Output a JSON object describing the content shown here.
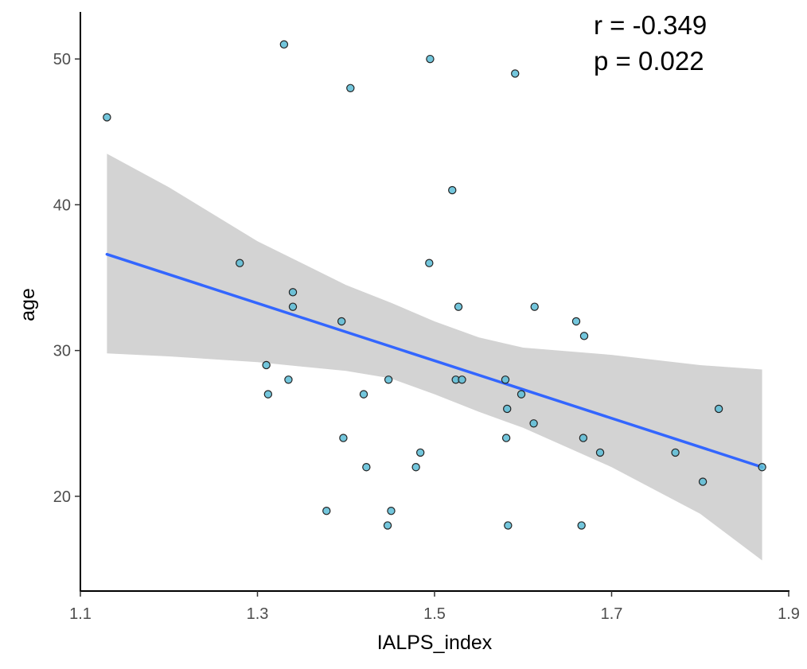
{
  "chart_data": {
    "type": "scatter",
    "title": "",
    "xlabel": "IALPS_index",
    "ylabel": "age",
    "xlim": [
      1.1,
      1.9
    ],
    "ylim": [
      13.5,
      53.5
    ],
    "xticks": [
      1.1,
      1.3,
      1.5,
      1.7,
      1.9
    ],
    "xtick_labels": [
      "1.1",
      "1.3",
      "1.5",
      "1.7",
      "1.9"
    ],
    "yticks": [
      20,
      30,
      40,
      50
    ],
    "ytick_labels": [
      "20",
      "30",
      "40",
      "50"
    ],
    "grid": false,
    "legend": "none",
    "annotations": [
      "r = -0.349",
      "p = 0.022"
    ],
    "colors": {
      "point_fill": "#5bbcd6",
      "point_edge": "#222222",
      "fit_line": "#3366ff",
      "ci_band": "#d3d3d3",
      "axis": "#000000"
    },
    "points": [
      {
        "x": 1.13,
        "y": 46
      },
      {
        "x": 1.28,
        "y": 36
      },
      {
        "x": 1.31,
        "y": 29
      },
      {
        "x": 1.312,
        "y": 27
      },
      {
        "x": 1.33,
        "y": 51
      },
      {
        "x": 1.335,
        "y": 28
      },
      {
        "x": 1.34,
        "y": 34
      },
      {
        "x": 1.34,
        "y": 33
      },
      {
        "x": 1.378,
        "y": 19
      },
      {
        "x": 1.395,
        "y": 32
      },
      {
        "x": 1.397,
        "y": 24
      },
      {
        "x": 1.405,
        "y": 48
      },
      {
        "x": 1.42,
        "y": 27
      },
      {
        "x": 1.423,
        "y": 22
      },
      {
        "x": 1.447,
        "y": 18
      },
      {
        "x": 1.448,
        "y": 28
      },
      {
        "x": 1.451,
        "y": 19
      },
      {
        "x": 1.479,
        "y": 22
      },
      {
        "x": 1.484,
        "y": 23
      },
      {
        "x": 1.494,
        "y": 36
      },
      {
        "x": 1.495,
        "y": 50
      },
      {
        "x": 1.52,
        "y": 41
      },
      {
        "x": 1.524,
        "y": 28
      },
      {
        "x": 1.527,
        "y": 33
      },
      {
        "x": 1.531,
        "y": 28
      },
      {
        "x": 1.58,
        "y": 28
      },
      {
        "x": 1.581,
        "y": 24
      },
      {
        "x": 1.582,
        "y": 26
      },
      {
        "x": 1.583,
        "y": 18
      },
      {
        "x": 1.591,
        "y": 49
      },
      {
        "x": 1.598,
        "y": 27
      },
      {
        "x": 1.612,
        "y": 25
      },
      {
        "x": 1.613,
        "y": 33
      },
      {
        "x": 1.66,
        "y": 32
      },
      {
        "x": 1.666,
        "y": 18
      },
      {
        "x": 1.668,
        "y": 24
      },
      {
        "x": 1.669,
        "y": 31
      },
      {
        "x": 1.687,
        "y": 23
      },
      {
        "x": 1.772,
        "y": 23
      },
      {
        "x": 1.803,
        "y": 21
      },
      {
        "x": 1.821,
        "y": 26
      },
      {
        "x": 1.87,
        "y": 22
      }
    ],
    "fit": {
      "method": "lm",
      "x": [
        1.13,
        1.87
      ],
      "y": [
        36.6,
        22.0
      ],
      "ci_lower": [
        {
          "x": 1.13,
          "y": 29.8
        },
        {
          "x": 1.2,
          "y": 29.6
        },
        {
          "x": 1.3,
          "y": 29.2
        },
        {
          "x": 1.4,
          "y": 28.6
        },
        {
          "x": 1.45,
          "y": 28.1
        },
        {
          "x": 1.5,
          "y": 27.0
        },
        {
          "x": 1.55,
          "y": 25.8
        },
        {
          "x": 1.6,
          "y": 24.7
        },
        {
          "x": 1.7,
          "y": 22.0
        },
        {
          "x": 1.8,
          "y": 18.8
        },
        {
          "x": 1.87,
          "y": 15.6
        }
      ],
      "ci_upper": [
        {
          "x": 1.13,
          "y": 43.5
        },
        {
          "x": 1.2,
          "y": 41.2
        },
        {
          "x": 1.3,
          "y": 37.5
        },
        {
          "x": 1.4,
          "y": 34.5
        },
        {
          "x": 1.45,
          "y": 33.3
        },
        {
          "x": 1.5,
          "y": 32.0
        },
        {
          "x": 1.55,
          "y": 30.9
        },
        {
          "x": 1.6,
          "y": 30.2
        },
        {
          "x": 1.7,
          "y": 29.7
        },
        {
          "x": 1.8,
          "y": 29.0
        },
        {
          "x": 1.87,
          "y": 28.7
        }
      ]
    }
  }
}
